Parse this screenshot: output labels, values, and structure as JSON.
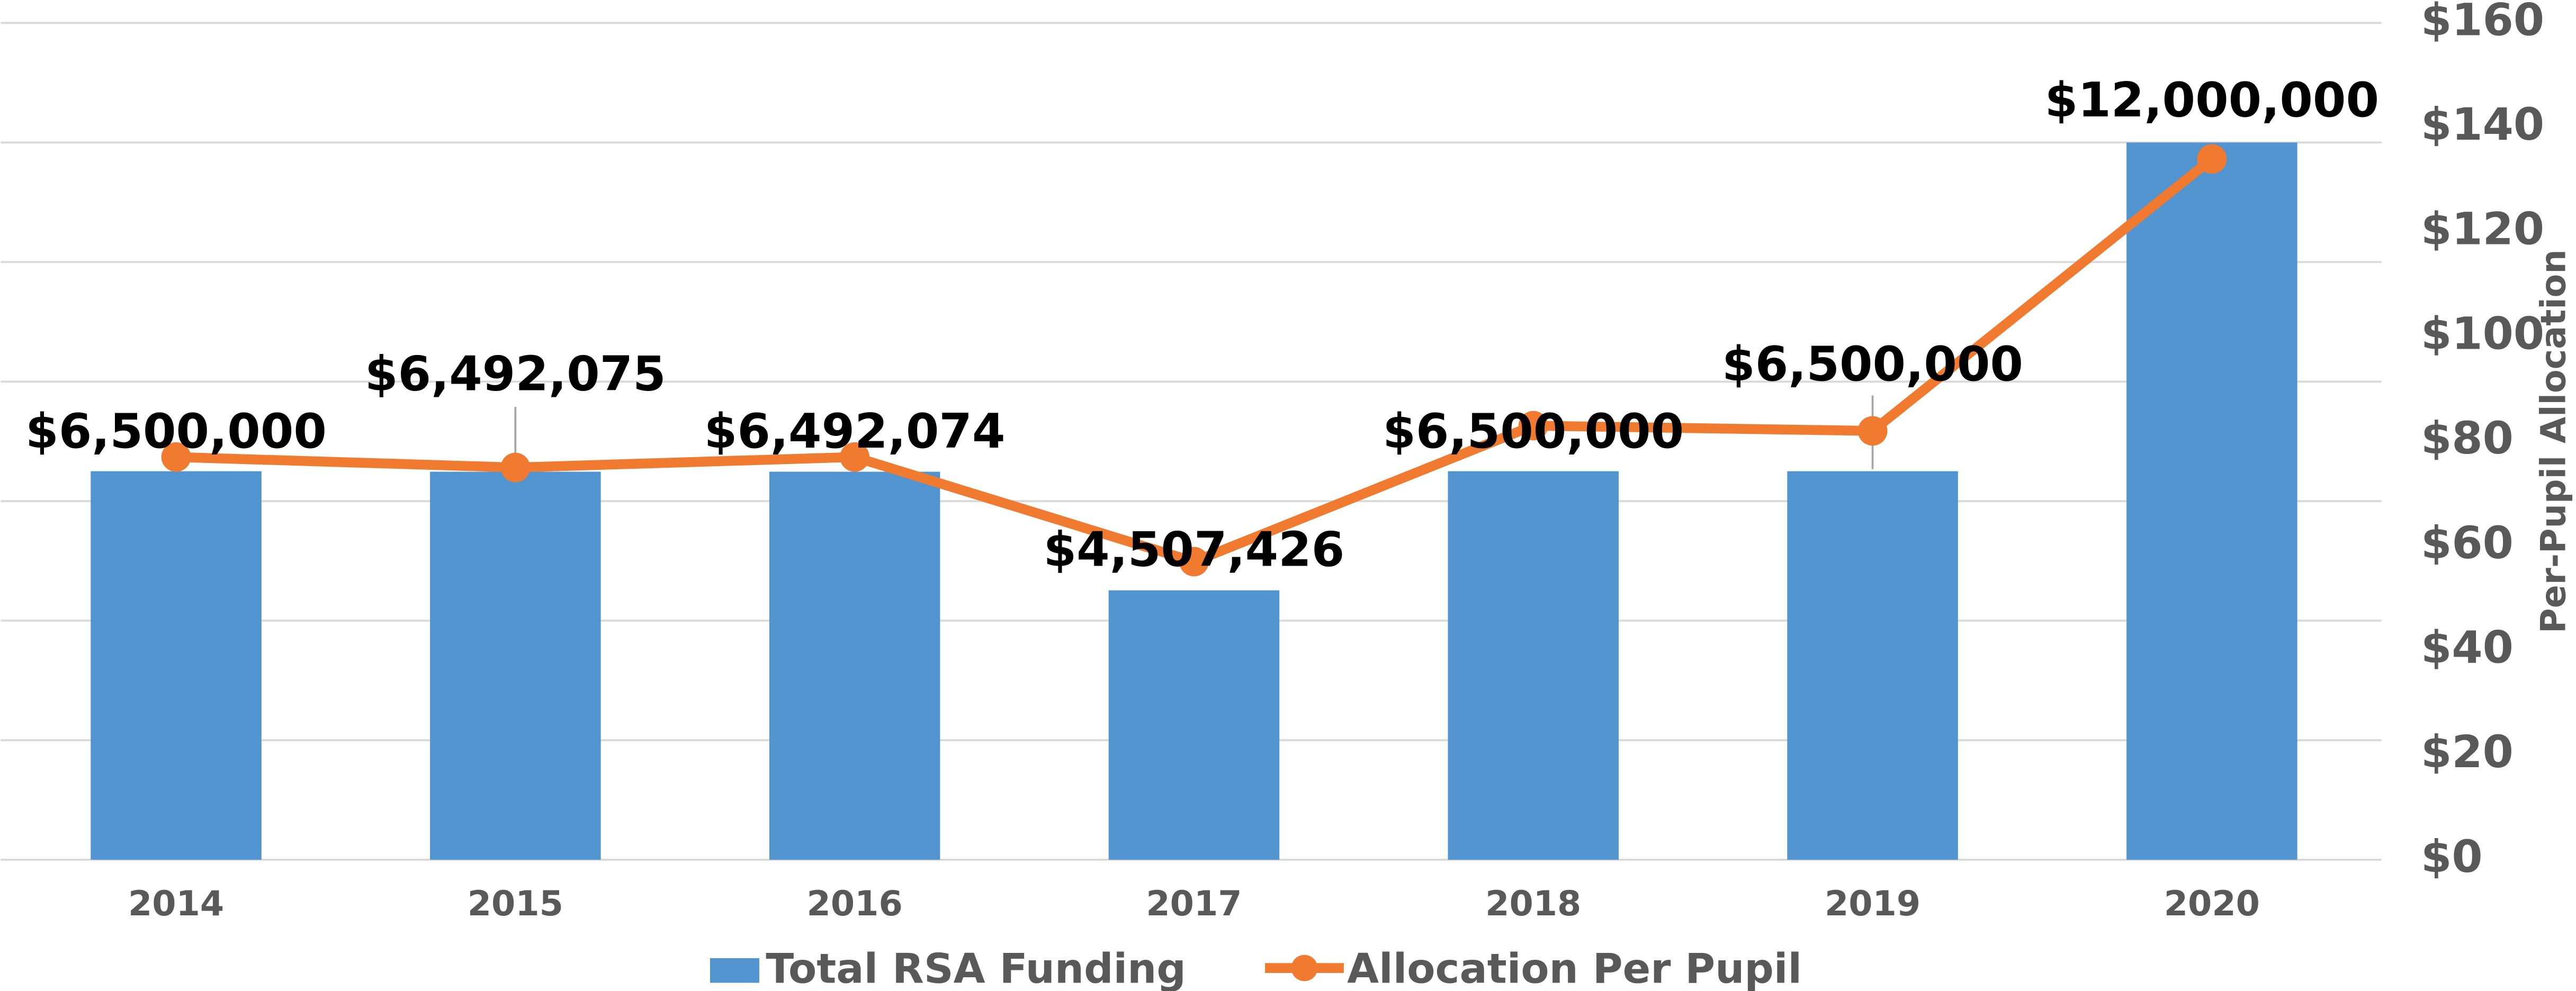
{
  "chart_data": {
    "type": "combo",
    "categories": [
      "2014",
      "2015",
      "2016",
      "2017",
      "2018",
      "2019",
      "2020"
    ],
    "series": [
      {
        "name": "Total RSA Funding",
        "type": "bar",
        "color": "#5294cf",
        "values": [
          6500000,
          6492075,
          6492074,
          4507426,
          6500000,
          6500000,
          12000000
        ],
        "value_labels": [
          "$6,500,000",
          "$6,492,075",
          "$6,492,074",
          "$4,507,426",
          "$6,500,000",
          "$6,500,000",
          "$12,000,000"
        ]
      },
      {
        "name": "Allocation Per Pupil",
        "type": "line",
        "axis": "y2",
        "color": "#ef7a30",
        "values": [
          77,
          75,
          77,
          57,
          83,
          82,
          134
        ]
      }
    ],
    "ylim": [
      0,
      14000000
    ],
    "yticks": [
      0,
      2000000,
      4000000,
      6000000,
      8000000,
      10000000,
      12000000,
      14000000
    ],
    "y2lim": [
      0,
      160
    ],
    "y2ticks": [
      {
        "value": 0,
        "label": "$0"
      },
      {
        "value": 20,
        "label": "$20"
      },
      {
        "value": 40,
        "label": "$40"
      },
      {
        "value": 60,
        "label": "$60"
      },
      {
        "value": 80,
        "label": "$80"
      },
      {
        "value": 100,
        "label": "$100"
      },
      {
        "value": 120,
        "label": "$120"
      },
      {
        "value": 140,
        "label": "$140"
      },
      {
        "value": 160,
        "label": "$160"
      }
    ],
    "y2label": "Per-Pupil Allocation",
    "grid": true,
    "legend": "bottom"
  }
}
